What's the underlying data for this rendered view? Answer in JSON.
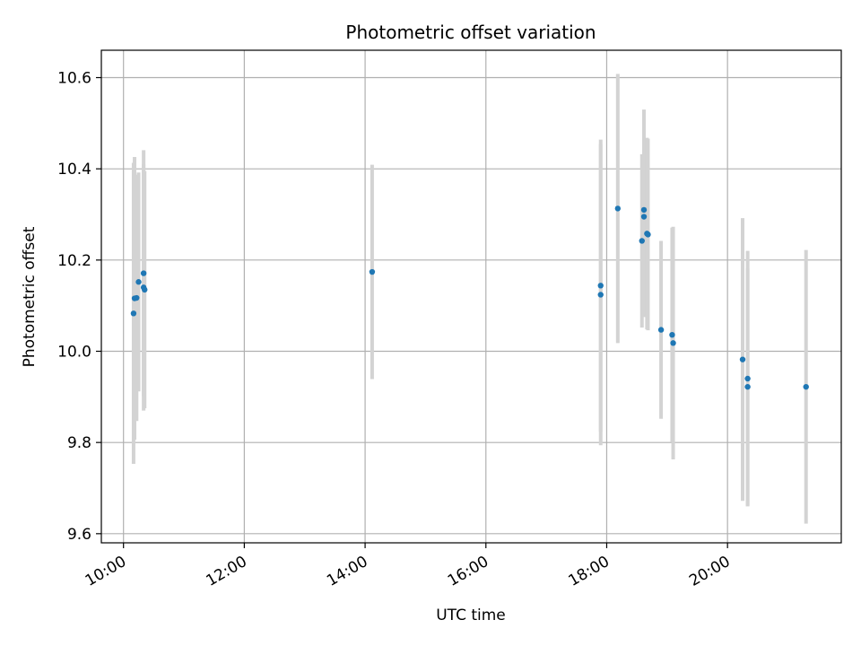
{
  "chart_data": {
    "type": "scatter",
    "title": "Photometric offset variation",
    "xlabel": "UTC time",
    "ylabel": "Photometric offset",
    "x_axis_type": "time",
    "xlim": [
      "09:38",
      "21:53"
    ],
    "ylim": [
      9.58,
      10.66
    ],
    "x_ticks": [
      "10:00",
      "12:00",
      "14:00",
      "16:00",
      "18:00",
      "20:00"
    ],
    "y_ticks": [
      "9.6",
      "9.8",
      "10.0",
      "10.2",
      "10.4",
      "10.6"
    ],
    "grid": true,
    "legend": "none",
    "colors": {
      "marker": "#1f77b4",
      "errorbar": "#d3d3d3",
      "grid": "#b0b0b0"
    },
    "points": [
      {
        "t": "10:10",
        "y": 10.083,
        "err": 0.33
      },
      {
        "t": "10:11",
        "y": 10.116,
        "err": 0.31
      },
      {
        "t": "10:13",
        "y": 10.117,
        "err": 0.27
      },
      {
        "t": "10:15",
        "y": 10.152,
        "err": 0.24
      },
      {
        "t": "10:20",
        "y": 10.171,
        "err": 0.27
      },
      {
        "t": "10:20",
        "y": 10.14,
        "err": 0.27
      },
      {
        "t": "10:21",
        "y": 10.135,
        "err": 0.26
      },
      {
        "t": "14:07",
        "y": 10.174,
        "err": 0.235
      },
      {
        "t": "17:54",
        "y": 10.144,
        "err": 0.32
      },
      {
        "t": "17:54",
        "y": 10.124,
        "err": 0.33
      },
      {
        "t": "18:11",
        "y": 10.313,
        "err": 0.295
      },
      {
        "t": "18:35",
        "y": 10.242,
        "err": 0.19
      },
      {
        "t": "18:37",
        "y": 10.31,
        "err": 0.22
      },
      {
        "t": "18:37",
        "y": 10.295,
        "err": 0.22
      },
      {
        "t": "18:40",
        "y": 10.258,
        "err": 0.21
      },
      {
        "t": "18:41",
        "y": 10.256,
        "err": 0.21
      },
      {
        "t": "18:54",
        "y": 10.047,
        "err": 0.195
      },
      {
        "t": "19:05",
        "y": 10.036,
        "err": 0.235
      },
      {
        "t": "19:06",
        "y": 10.018,
        "err": 0.255
      },
      {
        "t": "20:15",
        "y": 9.982,
        "err": 0.31
      },
      {
        "t": "20:20",
        "y": 9.94,
        "err": 0.28
      },
      {
        "t": "20:20",
        "y": 9.922,
        "err": 0.26
      },
      {
        "t": "21:18",
        "y": 9.922,
        "err": 0.3
      }
    ]
  }
}
